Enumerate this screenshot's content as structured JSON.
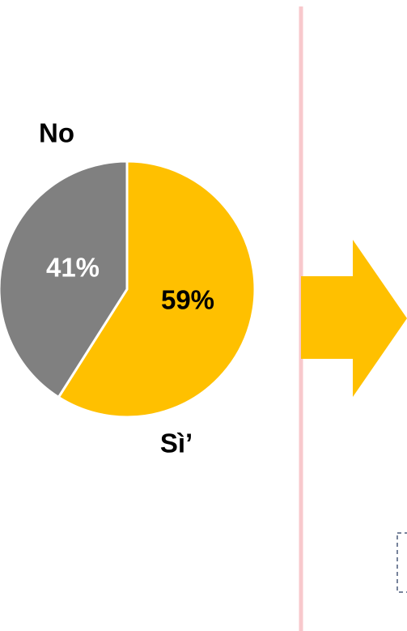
{
  "chart_data": {
    "type": "pie",
    "categories": [
      "Sì’",
      "No"
    ],
    "values": [
      59,
      41
    ],
    "value_labels": [
      "59%",
      "41%"
    ],
    "colors": [
      "#ffc000",
      "#808080"
    ],
    "label_colors": [
      "#000000",
      "#ffffff"
    ]
  }
}
